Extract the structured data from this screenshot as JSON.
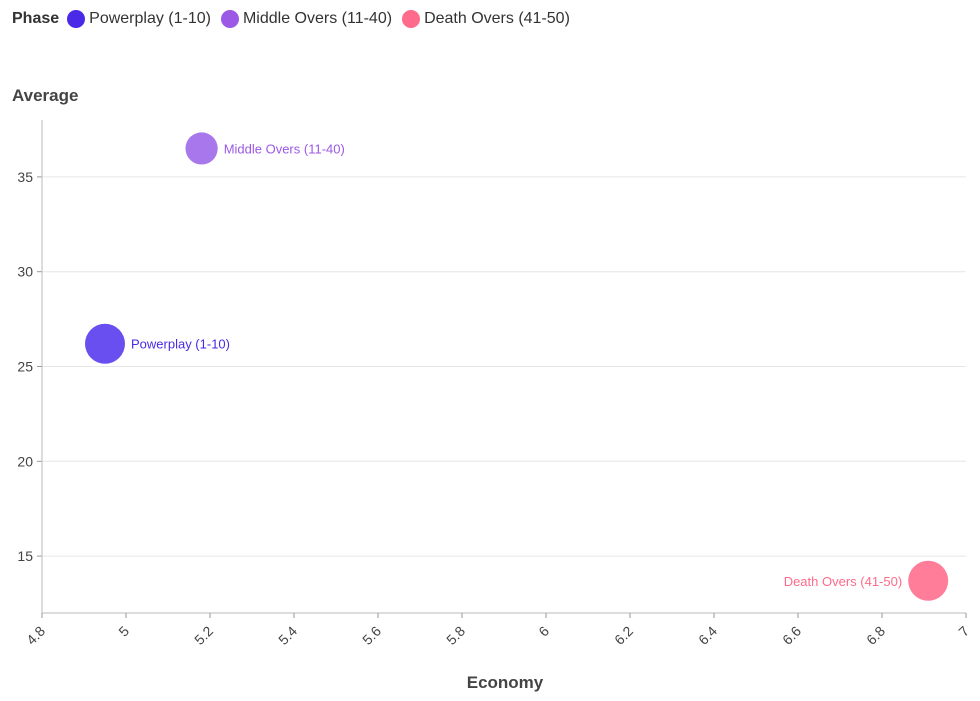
{
  "legend": {
    "title": "Phase",
    "items": [
      {
        "label": "Powerplay (1-10)",
        "color": "#4a2ae6"
      },
      {
        "label": "Middle Overs (11-40)",
        "color": "#9b59e6"
      },
      {
        "label": "Death Overs (41-50)",
        "color": "#ff6b8a"
      }
    ]
  },
  "chart_data": {
    "type": "scatter",
    "xlabel": "Economy",
    "ylabel": "Average",
    "xlim": [
      4.8,
      7
    ],
    "ylim": [
      12,
      38
    ],
    "x_ticks": [
      "4.8",
      "5",
      "5.2",
      "5.4",
      "5.6",
      "5.8",
      "6",
      "6.2",
      "6.4",
      "6.6",
      "6.8",
      "7"
    ],
    "y_ticks": [
      "15",
      "20",
      "25",
      "30",
      "35"
    ],
    "grid": true,
    "legend_placement": "top-left",
    "series": [
      {
        "name": "Powerplay (1-10)",
        "x": 4.95,
        "y": 26.2,
        "size": 1.0,
        "color": "#4a2ae6",
        "fill": "#6a4ff0",
        "label": "Powerplay (1-10)",
        "label_side": "right"
      },
      {
        "name": "Middle Overs (11-40)",
        "x": 5.18,
        "y": 36.5,
        "size": 0.7,
        "color": "#9b59e6",
        "fill": "#a877ec",
        "label": "Middle Overs (11-40)",
        "label_side": "right"
      },
      {
        "name": "Death Overs (41-50)",
        "x": 6.91,
        "y": 13.7,
        "size": 1.0,
        "color": "#ff6b8a",
        "fill": "#ff7d98",
        "label": "Death Overs (41-50)",
        "label_side": "left"
      }
    ]
  }
}
